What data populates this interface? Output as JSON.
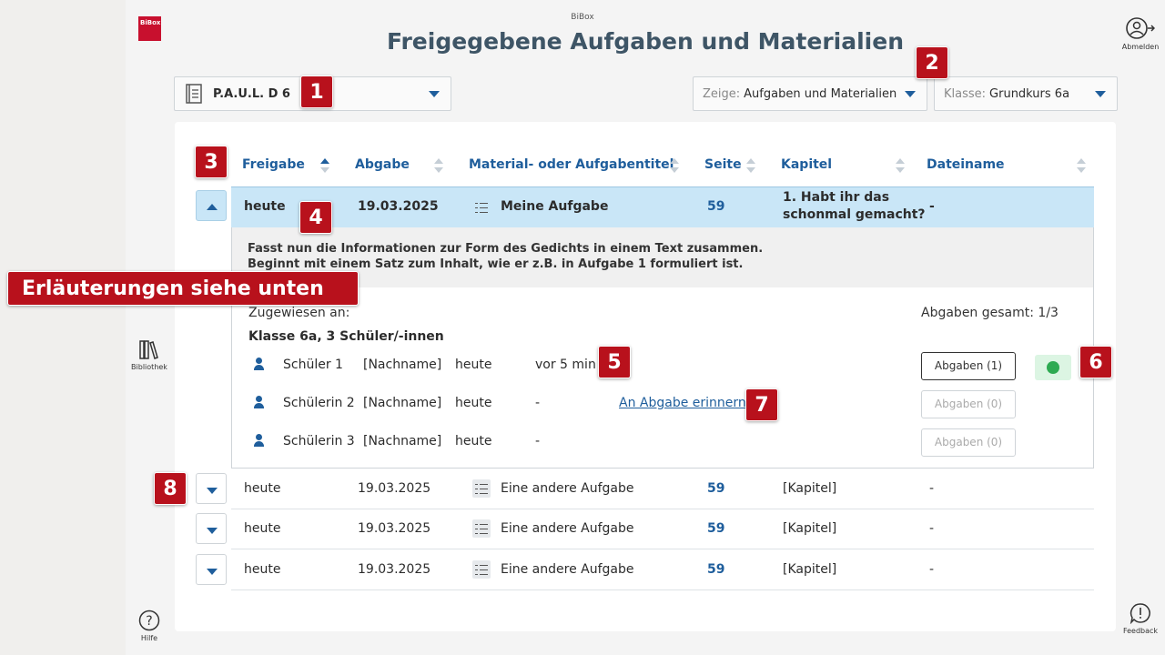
{
  "header": {
    "logo_text": "BiBox",
    "app_name": "BiBox",
    "title": "Freigegebene Aufgaben und Materialien",
    "logout_label": "Abmelden"
  },
  "sidebar": {
    "library_label": "Bibliothek",
    "help_label": "Hilfe",
    "feedback_label": "Feedback"
  },
  "filters": {
    "book": "P.A.U.L. D 6",
    "show_prefix": "Zeige:",
    "show_value": "Aufgaben und Materialien",
    "class_prefix": "Klasse:",
    "class_value": "Grundkurs 6a"
  },
  "table": {
    "columns": [
      "Freigabe",
      "Abgabe",
      "Material- oder Aufgabentitel",
      "Seite",
      "Kapitel",
      "Dateiname"
    ],
    "selected_row": {
      "freigabe": "heute",
      "abgabe": "19.03.2025",
      "titel": "Meine Aufgabe",
      "seite": "59",
      "kapitel_line1": "1. Habt ihr das",
      "kapitel_line2": "schonmal gemacht?",
      "dateiname": "-"
    },
    "rows": [
      {
        "freigabe": "heute",
        "abgabe": "19.03.2025",
        "titel": "Eine andere Aufgabe",
        "seite": "59",
        "kapitel": "[Kapitel]",
        "dateiname": "-"
      },
      {
        "freigabe": "heute",
        "abgabe": "19.03.2025",
        "titel": "Eine andere Aufgabe",
        "seite": "59",
        "kapitel": "[Kapitel]",
        "dateiname": "-"
      },
      {
        "freigabe": "heute",
        "abgabe": "19.03.2025",
        "titel": "Eine andere Aufgabe",
        "seite": "59",
        "kapitel": "[Kapitel]",
        "dateiname": "-"
      }
    ]
  },
  "details": {
    "description_line1": "Fasst nun die Informationen zur Form des Gedichts in einem Text zusammen.",
    "description_line2": "Beginnt mit einem Satz zum Inhalt, wie er z.B. in Aufgabe 1 formuliert ist.",
    "assigned_label": "Zugewiesen an:",
    "assigned_value": "Klasse 6a, 3 Schüler/-innen",
    "total_label": "Abgaben gesamt: 1/3",
    "students": [
      {
        "name": "Schüler 1",
        "lastname": "[Nachname]",
        "date": "heute",
        "time": "vor 5 min",
        "remind": "",
        "button": "Abgaben (1)"
      },
      {
        "name": "Schülerin 2",
        "lastname": "[Nachname]",
        "date": "heute",
        "time": "-",
        "remind": "An Abgabe erinnern",
        "button": "Abgaben (0)"
      },
      {
        "name": "Schülerin 3",
        "lastname": "[Nachname]",
        "date": "heute",
        "time": "-",
        "remind": "",
        "button": "Abgaben (0)"
      }
    ]
  },
  "annotations": {
    "callout": "Erläuterungen siehe unten",
    "badges": [
      "1",
      "2",
      "3",
      "4",
      "5",
      "6",
      "7",
      "8"
    ]
  },
  "colors": {
    "accent": "#1f5e9c",
    "selected_row": "#c9e6f7",
    "badge": "#b8111c",
    "status_green": "#2eaa52"
  }
}
